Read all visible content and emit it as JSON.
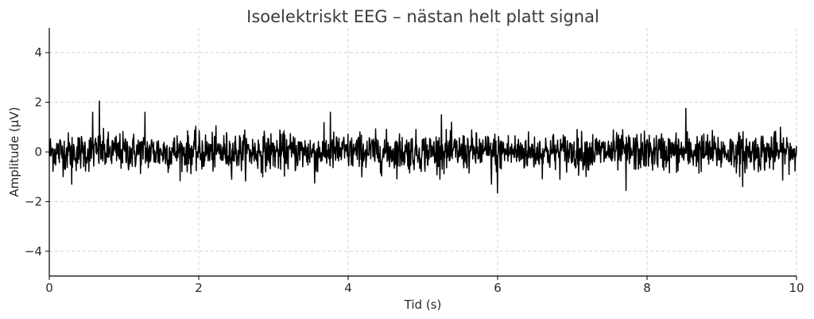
{
  "chart_data": {
    "type": "line",
    "title": "Isoelektriskt EEG – nästan helt platt signal",
    "xlabel": "Tid (s)",
    "ylabel": "Amplitude (µV)",
    "xlim": [
      0,
      10
    ],
    "ylim": [
      -5,
      5
    ],
    "x_ticks": [
      0,
      2,
      4,
      6,
      8,
      10
    ],
    "x_tick_labels": [
      "0",
      "2",
      "4",
      "6",
      "8",
      "10"
    ],
    "y_ticks": [
      4,
      2,
      0,
      -2,
      -4
    ],
    "y_tick_labels": [
      "4",
      "2",
      "0",
      "−2",
      "−4"
    ],
    "grid": true,
    "legend": "none",
    "series": [
      {
        "color": "#000000",
        "sample_count": 2000,
        "x_start": 0,
        "x_end": 10,
        "noise_std": 0.38,
        "peaks": [
          {
            "x": 0.67,
            "y": 2.05
          },
          {
            "x": 0.58,
            "y": 1.6
          },
          {
            "x": 1.28,
            "y": 1.6
          },
          {
            "x": 3.76,
            "y": 1.6
          },
          {
            "x": 8.52,
            "y": 1.75
          },
          {
            "x": 5.25,
            "y": 1.5
          },
          {
            "x": 6.0,
            "y": -1.65
          },
          {
            "x": 7.72,
            "y": -1.55
          },
          {
            "x": 5.92,
            "y": -1.3
          },
          {
            "x": 3.55,
            "y": -1.25
          },
          {
            "x": 9.28,
            "y": -1.4
          },
          {
            "x": 0.3,
            "y": -1.3
          }
        ]
      }
    ]
  },
  "colors": {
    "line": "#000000",
    "grid": "#cccccc",
    "axis": "#000000",
    "text": "#262626",
    "background": "#ffffff"
  }
}
